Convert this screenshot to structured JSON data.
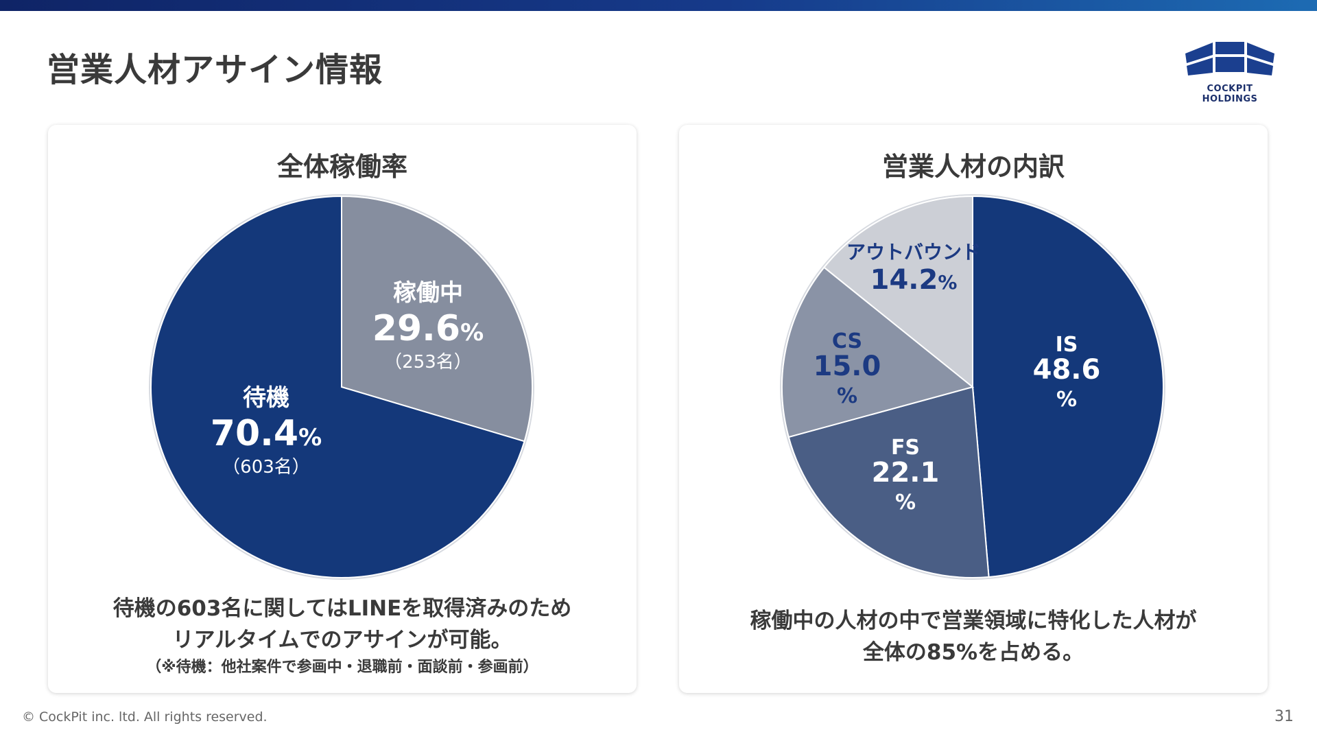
{
  "page_title": "営業人材アサイン情報",
  "logo_text": "COCKPIT HOLDINGS",
  "footer": "© CockPit inc. ltd. All rights reserved.",
  "page_number": "31",
  "colors": {
    "navy": "#14387a",
    "gray_blue": "#8790a2",
    "slate": "#4a5e85",
    "light_gray": "#cccfd6",
    "mid_gray": "#8a93a6"
  },
  "left_panel": {
    "title": "全体稼働率",
    "description_line1": "待機の603名に関してはLINEを取得済みのため",
    "description_line2": "リアルタイムでのアサインが可能。",
    "note": "（※待機：他社案件で参画中・退職前・面談前・参画前）"
  },
  "right_panel": {
    "title": "営業人材の内訳",
    "description_line1": "稼働中の人材の中で営業領域に特化した人材が",
    "description_line2": "全体の85%を占める。"
  },
  "chart_data": [
    {
      "type": "pie",
      "title": "全体稼働率",
      "slices": [
        {
          "label": "稼働中",
          "value": 29.6,
          "value_text": "29.6",
          "unit": "%",
          "count_text": "（253名）",
          "color": "#868e9f"
        },
        {
          "label": "待機",
          "value": 70.4,
          "value_text": "70.4",
          "unit": "%",
          "count_text": "（603名）",
          "color": "#14387a"
        }
      ]
    },
    {
      "type": "pie",
      "title": "営業人材の内訳",
      "slices": [
        {
          "label": "IS",
          "value": 48.6,
          "value_text": "48.6",
          "unit": "%",
          "color": "#14387a"
        },
        {
          "label": "FS",
          "value": 22.1,
          "value_text": "22.1",
          "unit": "%",
          "color": "#4a5e85"
        },
        {
          "label": "CS",
          "value": 15.0,
          "value_text": "15.0",
          "unit": "%",
          "color": "#8a93a6"
        },
        {
          "label": "アウトバウンド",
          "value": 14.2,
          "value_text": "14.2",
          "unit": "%",
          "color": "#cccfd6"
        }
      ]
    }
  ]
}
